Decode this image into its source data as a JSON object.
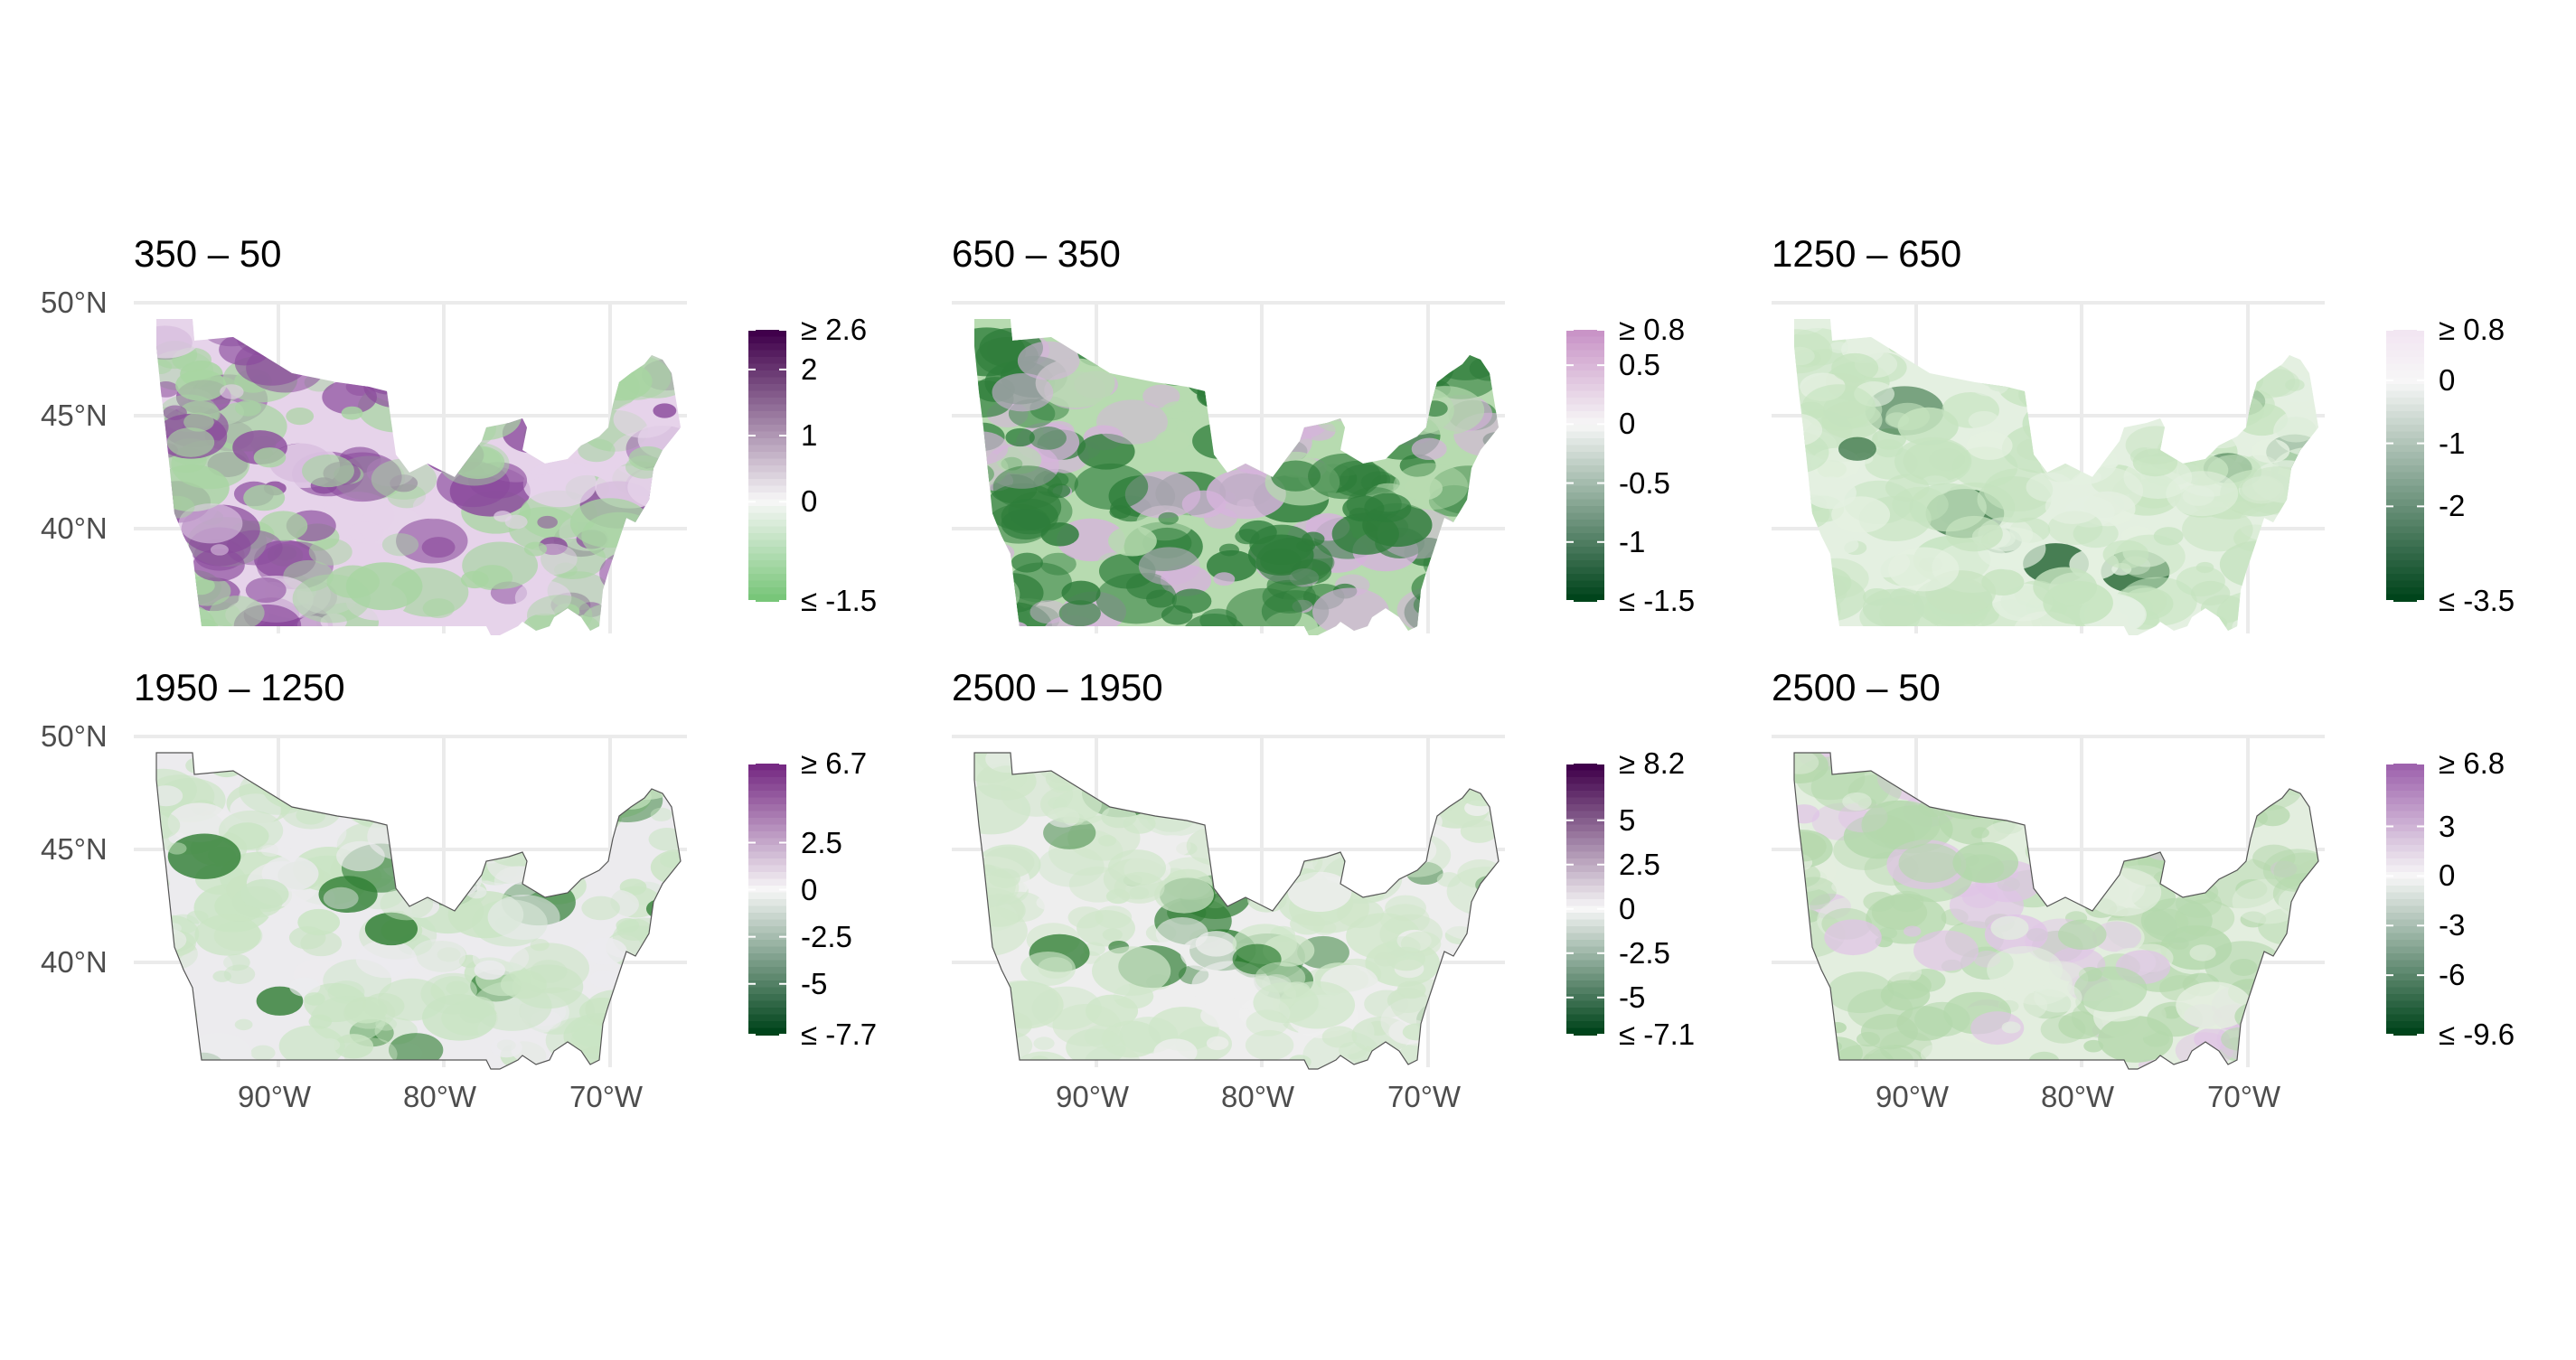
{
  "figure": {
    "lat_tick_labels": [
      "50°N",
      "45°N",
      "40°N"
    ],
    "lon_tick_labels": [
      "90°W",
      "80°W",
      "70°W"
    ],
    "panels": [
      {
        "title": "350 – 50",
        "legend": {
          "labels": [
            "≥ 2.6",
            "2",
            "1",
            "0",
            "≤ -1.5"
          ],
          "values": [
            2.6,
            2,
            1,
            0,
            -1.5
          ],
          "max": 2.6,
          "min": -1.5,
          "top_color": "#40004b",
          "bottom_color": "#78c679"
        }
      },
      {
        "title": "650 – 350",
        "legend": {
          "labels": [
            "≥ 0.8",
            "0.5",
            "0",
            "-0.5",
            "-1",
            "≤ -1.5"
          ],
          "values": [
            0.8,
            0.5,
            0,
            -0.5,
            -1,
            -1.5
          ],
          "max": 0.8,
          "min": -1.5,
          "top_color": "#c994c7",
          "bottom_color": "#00441b"
        }
      },
      {
        "title": "1250 – 650",
        "legend": {
          "labels": [
            "≥ 0.8",
            "0",
            "-1",
            "-2",
            "≤ -3.5"
          ],
          "values": [
            0.8,
            0,
            -1,
            -2,
            -3.5
          ],
          "max": 0.8,
          "min": -3.5,
          "top_color": "#f2e6f2",
          "bottom_color": "#00441b"
        }
      },
      {
        "title": "1950 – 1250",
        "legend": {
          "labels": [
            "≥ 6.7",
            "2.5",
            "0",
            "-2.5",
            "-5",
            "≤ -7.7"
          ],
          "values": [
            6.7,
            2.5,
            0,
            -2.5,
            -5,
            -7.7
          ],
          "max": 6.7,
          "min": -7.7,
          "top_color": "#762a83",
          "bottom_color": "#00441b"
        }
      },
      {
        "title": "2500 – 1950",
        "legend": {
          "labels": [
            "≥ 8.2",
            "5",
            "2.5",
            "0",
            "-2.5",
            "-5",
            "≤ -7.1"
          ],
          "values": [
            8.2,
            5,
            2.5,
            0,
            -2.5,
            -5,
            -7.1
          ],
          "max": 8.2,
          "min": -7.1,
          "top_color": "#40004b",
          "bottom_color": "#00441b"
        }
      },
      {
        "title": "2500 – 50",
        "legend": {
          "labels": [
            "≥ 6.8",
            "3",
            "0",
            "-3",
            "-6",
            "≤ -9.6"
          ],
          "values": [
            6.8,
            3,
            0,
            -3,
            -6,
            -9.6
          ],
          "max": 6.8,
          "min": -9.6,
          "top_color": "#9e63ad",
          "bottom_color": "#00441b"
        }
      }
    ]
  }
}
